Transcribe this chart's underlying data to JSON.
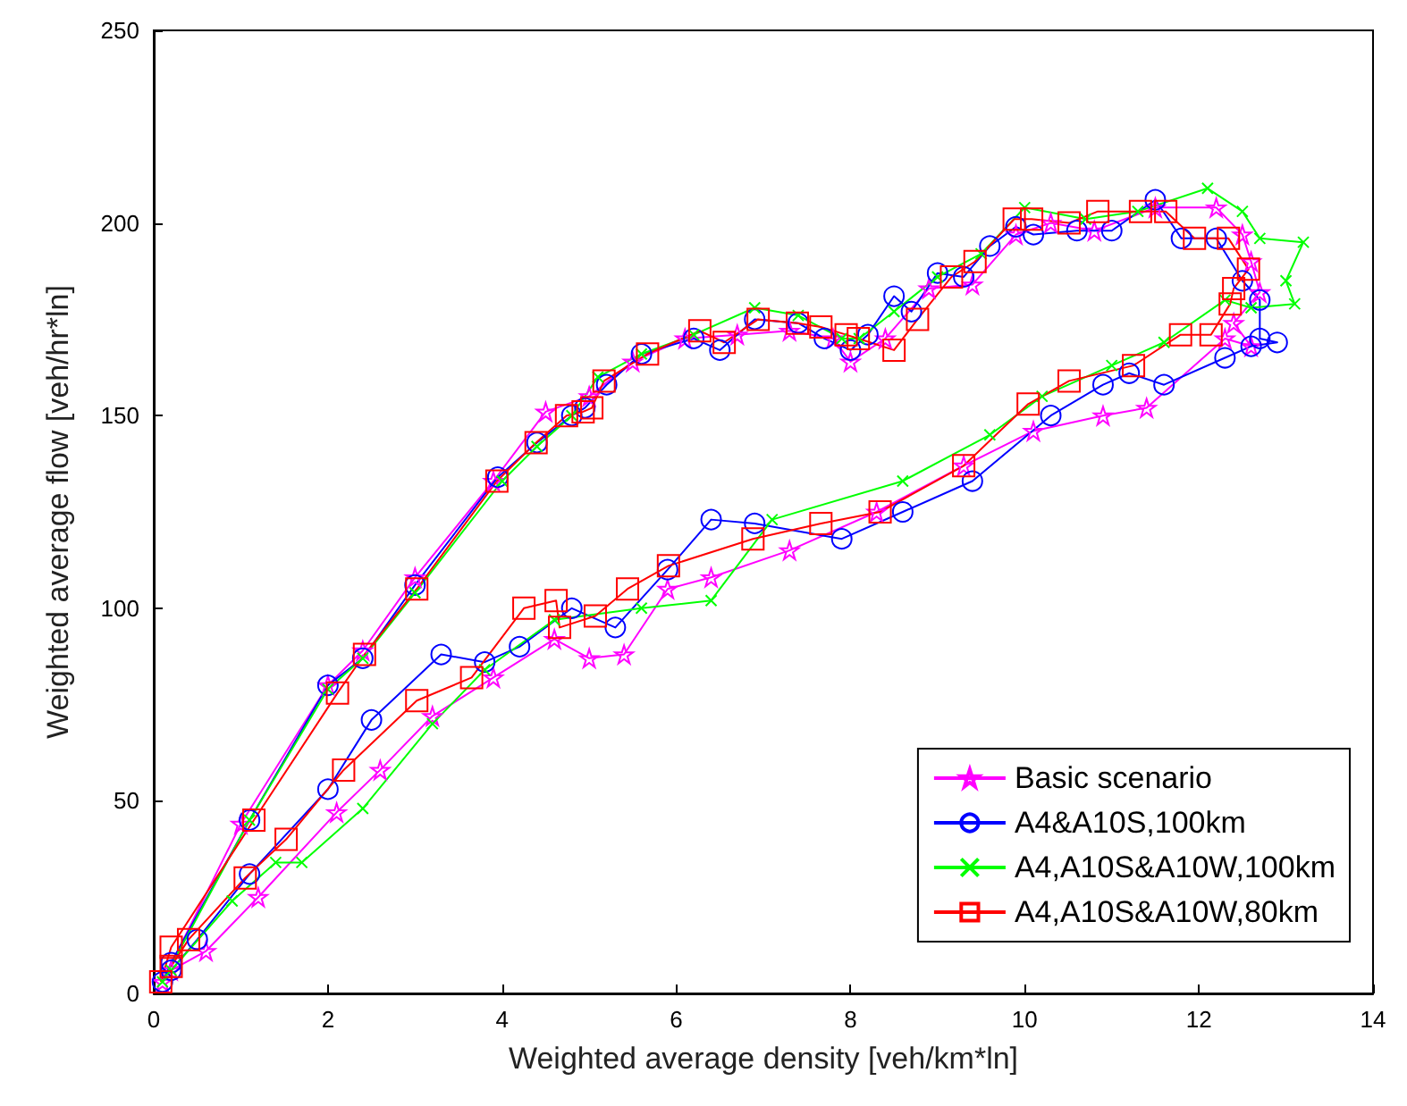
{
  "chart_data": {
    "type": "line",
    "xlabel": "Weighted average density [veh/km*ln]",
    "ylabel": "Weighted average flow [veh/hr*ln]",
    "xlim": [
      0,
      14
    ],
    "xticks": [
      0,
      2,
      4,
      6,
      8,
      10,
      12,
      14
    ],
    "ylim": [
      0,
      250
    ],
    "yticks": [
      0,
      50,
      100,
      150,
      200,
      250
    ],
    "grid": false,
    "legend": "bottom right",
    "line_style": "solid",
    "series": [
      {
        "name": "Basic scenario",
        "color": "#ff00ff",
        "marker": "star",
        "x": [
          0.1,
          1.0,
          2.0,
          2.4,
          3.0,
          3.9,
          4.5,
          5.0,
          5.5,
          6.1,
          6.7,
          7.3,
          7.8,
          8.0,
          8.4,
          8.9,
          9.4,
          9.9,
          10.3,
          10.8,
          11.5,
          12.2,
          12.5,
          12.6,
          12.7,
          12.4,
          12.6,
          12.3,
          11.4,
          10.9,
          10.1,
          9.3,
          8.3,
          7.3,
          6.4,
          5.9,
          5.4,
          5.0,
          4.6,
          3.9,
          3.2,
          2.6,
          2.1,
          1.2,
          0.6,
          0.2
        ],
        "values": [
          3,
          44,
          80,
          89,
          108,
          133,
          151,
          155,
          164,
          170,
          171,
          172,
          170,
          164,
          170,
          183,
          184,
          197,
          200,
          198,
          204,
          204,
          197,
          190,
          182,
          174,
          168,
          170,
          152,
          150,
          146,
          137,
          125,
          115,
          108,
          105,
          88,
          87,
          92,
          82,
          72,
          58,
          47,
          25,
          11,
          6
        ]
      },
      {
        "name": "A4&A10S,100km",
        "color": "#0000ff",
        "marker": "circle",
        "x": [
          0.1,
          0.2,
          1.1,
          2.0,
          2.4,
          3.0,
          3.95,
          4.4,
          4.8,
          4.95,
          5.2,
          5.6,
          6.2,
          6.5,
          6.9,
          7.4,
          7.7,
          8.0,
          8.2,
          8.5,
          8.7,
          9.0,
          9.3,
          9.6,
          9.9,
          10.1,
          10.6,
          11.0,
          11.5,
          11.8,
          12.2,
          12.5,
          12.7,
          12.7,
          12.9,
          12.6,
          12.3,
          11.6,
          11.2,
          10.9,
          10.3,
          9.4,
          8.6,
          7.9,
          6.9,
          6.4,
          5.9,
          5.3,
          4.8,
          4.2,
          3.8,
          3.3,
          2.5,
          2.0,
          1.1,
          0.5,
          0.2
        ],
        "values": [
          3,
          8,
          45,
          80,
          87,
          106,
          134,
          143,
          150,
          152,
          158,
          166,
          170,
          167,
          175,
          174,
          170,
          167,
          171,
          181,
          177,
          187,
          186,
          194,
          199,
          197,
          198,
          198,
          206,
          196,
          196,
          185,
          180,
          170,
          169,
          168,
          165,
          158,
          161,
          158,
          150,
          133,
          125,
          118,
          122,
          123,
          110,
          95,
          100,
          90,
          86,
          88,
          71,
          53,
          31,
          14,
          6
        ]
      },
      {
        "name": "A4,A10S&A10W,100km",
        "color": "#00ff00",
        "marker": "cross",
        "x": [
          0.1,
          1.1,
          2.0,
          2.4,
          3.0,
          4.0,
          4.4,
          4.8,
          5.1,
          5.6,
          6.2,
          6.9,
          7.4,
          7.9,
          8.1,
          8.5,
          9.0,
          9.5,
          10.0,
          10.7,
          11.3,
          12.1,
          12.5,
          12.7,
          13.2,
          13.0,
          13.1,
          12.6,
          12.3,
          11.6,
          11.0,
          10.2,
          9.6,
          8.6,
          7.1,
          6.4,
          5.6,
          4.6,
          3.8,
          3.2,
          2.4,
          1.7,
          1.4,
          0.9,
          0.2
        ],
        "values": [
          3,
          45,
          79,
          87,
          104,
          133,
          142,
          150,
          160,
          166,
          171,
          178,
          176,
          170,
          170,
          177,
          186,
          192,
          204,
          201,
          203,
          209,
          203,
          196,
          195,
          185,
          179,
          178,
          180,
          169,
          163,
          155,
          145,
          133,
          123,
          102,
          100,
          97,
          84,
          70,
          48,
          34,
          34,
          24,
          6
        ]
      },
      {
        "name": "A4,A10S&A10W,80km",
        "color": "#ff0000",
        "marker": "square",
        "x": [
          0.08,
          0.2,
          1.15,
          2.11,
          2.42,
          3.02,
          3.94,
          4.39,
          4.74,
          4.93,
          5.03,
          5.17,
          5.67,
          6.27,
          6.55,
          6.94,
          7.39,
          7.66,
          7.95,
          8.09,
          8.5,
          8.77,
          9.16,
          9.43,
          9.88,
          10.08,
          10.51,
          10.84,
          11.33,
          11.62,
          11.95,
          12.34,
          12.57,
          12.4,
          12.36,
          12.14,
          11.79,
          11.25,
          10.51,
          10.04,
          9.3,
          8.34,
          7.66,
          6.88,
          5.91,
          5.44,
          5.07,
          4.66,
          4.62,
          4.25,
          3.65,
          3.02,
          2.18,
          1.52,
          1.05,
          0.4,
          0.2
        ],
        "values": [
          3,
          12,
          45,
          78,
          88,
          105,
          133,
          143,
          150,
          151,
          152,
          159,
          166,
          172,
          169,
          175,
          174,
          173,
          171,
          170,
          167,
          175,
          186,
          190,
          201,
          201,
          200,
          203,
          203,
          203,
          196,
          196,
          188,
          183,
          179,
          171,
          171,
          163,
          159,
          153,
          137,
          125,
          122,
          118,
          111,
          105,
          98,
          95,
          102,
          100,
          82,
          76,
          58,
          40,
          30,
          14,
          7
        ]
      }
    ]
  }
}
